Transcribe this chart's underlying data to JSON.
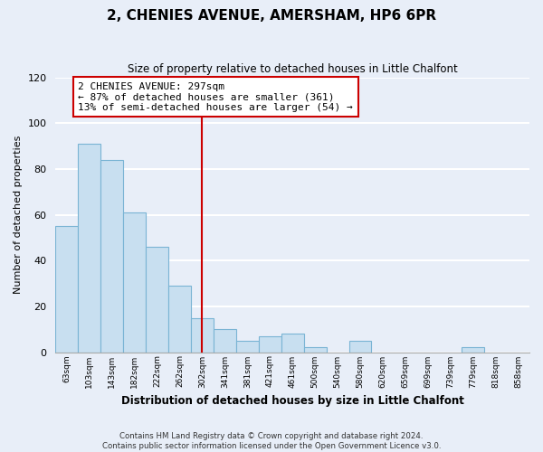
{
  "title": "2, CHENIES AVENUE, AMERSHAM, HP6 6PR",
  "subtitle": "Size of property relative to detached houses in Little Chalfont",
  "xlabel": "Distribution of detached houses by size in Little Chalfont",
  "ylabel": "Number of detached properties",
  "footer_line1": "Contains HM Land Registry data © Crown copyright and database right 2024.",
  "footer_line2": "Contains public sector information licensed under the Open Government Licence v3.0.",
  "bar_labels": [
    "63sqm",
    "103sqm",
    "143sqm",
    "182sqm",
    "222sqm",
    "262sqm",
    "302sqm",
    "341sqm",
    "381sqm",
    "421sqm",
    "461sqm",
    "500sqm",
    "540sqm",
    "580sqm",
    "620sqm",
    "659sqm",
    "699sqm",
    "739sqm",
    "779sqm",
    "818sqm",
    "858sqm"
  ],
  "bar_values": [
    55,
    91,
    84,
    61,
    46,
    29,
    15,
    10,
    5,
    7,
    8,
    2,
    0,
    5,
    0,
    0,
    0,
    0,
    2,
    0,
    0
  ],
  "bar_color": "#c8dff0",
  "bar_edge_color": "#7ab4d4",
  "highlight_line_color": "#cc0000",
  "annotation_text": "2 CHENIES AVENUE: 297sqm\n← 87% of detached houses are smaller (361)\n13% of semi-detached houses are larger (54) →",
  "annotation_box_color": "white",
  "annotation_box_edge_color": "#cc0000",
  "ylim": [
    0,
    120
  ],
  "yticks": [
    0,
    20,
    40,
    60,
    80,
    100,
    120
  ],
  "background_color": "#e8eef8",
  "plot_bg_color": "#e8eef8",
  "grid_color": "white"
}
